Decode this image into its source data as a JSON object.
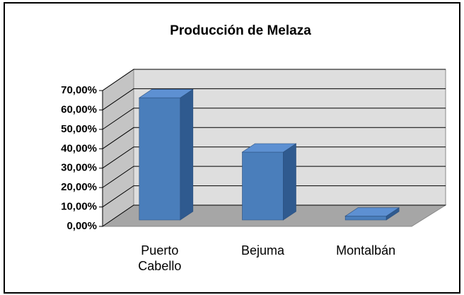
{
  "chart_data": {
    "type": "bar3d",
    "title": "Producción de Melaza",
    "categories": [
      "Puerto Cabello",
      "Bejuma",
      "Montalbán"
    ],
    "values": [
      63,
      35,
      2
    ],
    "color": "#4a7ebb",
    "ylim": [
      0,
      70
    ],
    "yticks": [
      {
        "value": 0,
        "label": "0,00%"
      },
      {
        "value": 10,
        "label": "10,00%"
      },
      {
        "value": 20,
        "label": "20,00%"
      },
      {
        "value": 30,
        "label": "30,00%"
      },
      {
        "value": 40,
        "label": "40,00%"
      },
      {
        "value": 50,
        "label": "50,00%"
      },
      {
        "value": 60,
        "label": "60,00%"
      },
      {
        "value": 70,
        "label": "70,00%"
      }
    ],
    "grid": true
  }
}
